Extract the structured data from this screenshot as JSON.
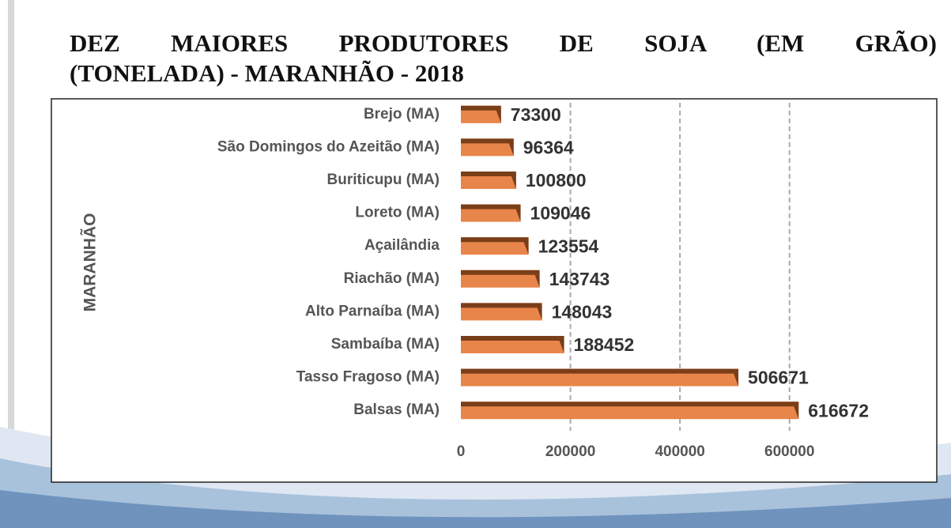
{
  "chart_data": {
    "type": "bar",
    "orientation": "horizontal",
    "title": "DEZ MAIORES PRODUTORES DE SOJA (EM GRÃO)\n(TONELADA) - MARANHÃO - 2018",
    "y_label": "MARANHÃO",
    "categories": [
      "Brejo (MA)",
      "São Domingos do Azeitão (MA)",
      "Buriticupu (MA)",
      "Loreto (MA)",
      "Açailândia",
      "Riachão (MA)",
      "Alto Parnaíba (MA)",
      "Sambaíba (MA)",
      "Tasso Fragoso (MA)",
      "Balsas (MA)"
    ],
    "values": [
      73300,
      96364,
      100800,
      109046,
      123554,
      143743,
      148043,
      188452,
      506671,
      616672
    ],
    "color": "#e8854a",
    "xlim": [
      0,
      700000
    ],
    "xticks": [
      0,
      200000,
      400000,
      600000
    ],
    "grid": true
  }
}
